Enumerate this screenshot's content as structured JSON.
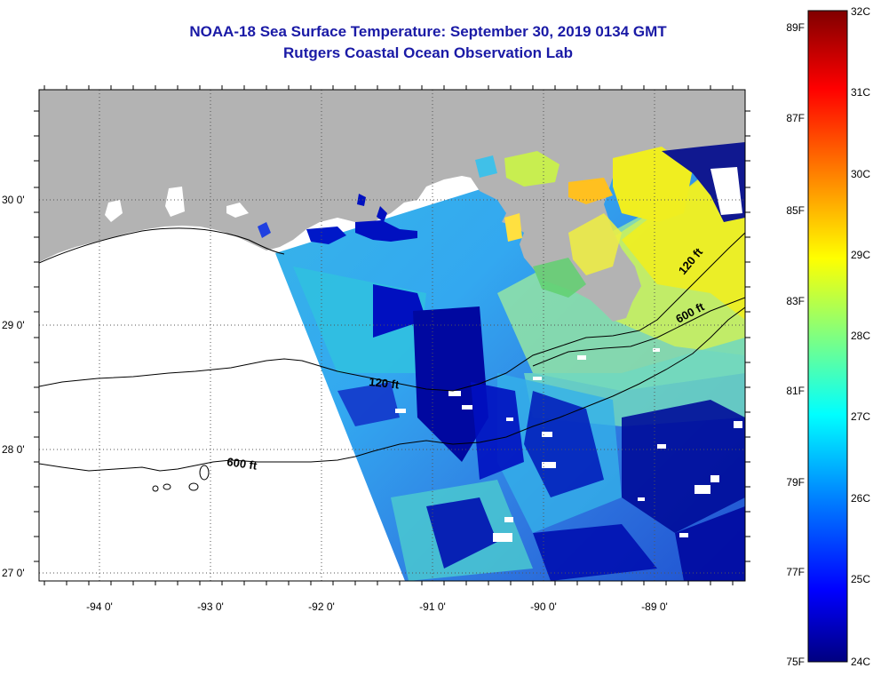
{
  "title": {
    "line1": "NOAA-18 Sea Surface Temperature:  September 30, 2019 0134 GMT",
    "line2": "Rutgers Coastal Ocean Observation Lab"
  },
  "axes": {
    "x_ticks": [
      "-94 0'",
      "-93 0'",
      "-92 0'",
      "-91 0'",
      "-90 0'",
      "-89 0'"
    ],
    "y_ticks": [
      "30 0'",
      "29 0'",
      "28 0'",
      "27 0'"
    ]
  },
  "isobaths": {
    "shelf_west": "600 ft",
    "shelf_mid": "120 ft",
    "delta_120": "120 ft",
    "delta_600": "600 ft"
  },
  "colorbar": {
    "fahrenheit": [
      "89F",
      "87F",
      "85F",
      "83F",
      "81F",
      "79F",
      "77F",
      "75F"
    ],
    "celsius": [
      "32C",
      "31C",
      "30C",
      "29C",
      "28C",
      "27C",
      "26C",
      "25C",
      "24C"
    ]
  },
  "colors": {
    "land": "#b3b3b3",
    "title": "#1a1aa6",
    "cold": "#00008f",
    "warm": "#ffe600"
  }
}
